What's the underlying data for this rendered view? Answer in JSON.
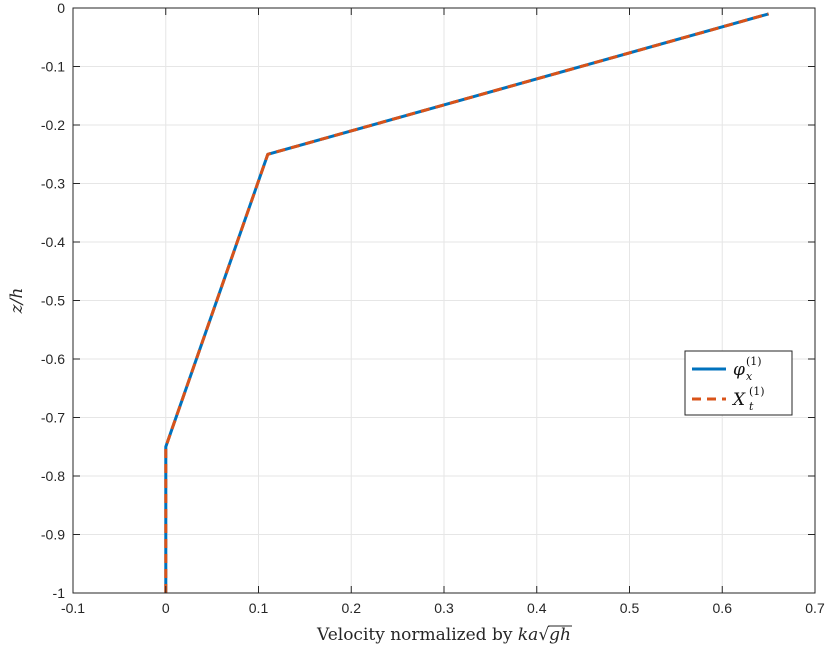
{
  "chart_data": {
    "type": "line",
    "xlabel": "Velocity normalized by ka√gh",
    "xlabel_parts": {
      "prefix": "Velocity normalized by ",
      "math": "ka",
      "sqrt_symbol": "√",
      "radicand": "gh"
    },
    "ylabel": "z/h",
    "xlim": [
      -0.1,
      0.7
    ],
    "ylim": [
      -1,
      0
    ],
    "xticks": [
      -0.1,
      0,
      0.1,
      0.2,
      0.3,
      0.4,
      0.5,
      0.6,
      0.7
    ],
    "xtick_labels": [
      "-0.1",
      "0",
      "0.1",
      "0.2",
      "0.3",
      "0.4",
      "0.5",
      "0.6",
      "0.7"
    ],
    "yticks": [
      0,
      -0.1,
      -0.2,
      -0.3,
      -0.4,
      -0.5,
      -0.6,
      -0.7,
      -0.8,
      -0.9,
      -1
    ],
    "ytick_labels": [
      "0",
      "-0.1",
      "-0.2",
      "-0.3",
      "-0.4",
      "-0.5",
      "-0.6",
      "-0.7",
      "-0.8",
      "-0.9",
      "-1"
    ],
    "grid": true,
    "legend_position": "right",
    "series": [
      {
        "name": "φx(1)",
        "label_base": "φ",
        "label_sub": "x",
        "label_sup": "(1)",
        "style": "solid",
        "color": "#0072BD",
        "x": [
          0,
          0,
          0.11,
          0.65
        ],
        "y": [
          -1,
          -0.75,
          -0.25,
          -0.01
        ]
      },
      {
        "name": "Xt(1)",
        "label_base": "X",
        "label_sub": "t",
        "label_sup": "(1)",
        "style": "dashed",
        "color": "#D95319",
        "x": [
          0,
          0,
          0.11,
          0.65
        ],
        "y": [
          -1,
          -0.75,
          -0.25,
          -0.01
        ]
      }
    ]
  },
  "colors": {
    "axis": "#262626",
    "grid": "#e6e6e6",
    "background": "#ffffff"
  }
}
